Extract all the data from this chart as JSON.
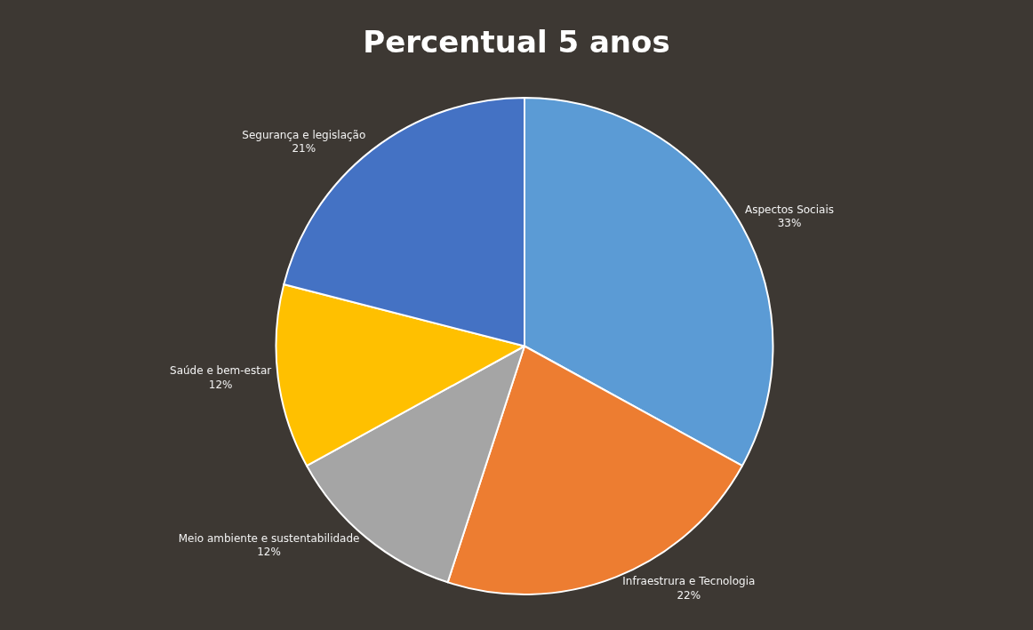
{
  "chart_data": {
    "type": "pie",
    "title": "Percentual 5 anos",
    "categories": [
      "Aspectos Sociais",
      "Infraestrura e Tecnologia",
      "Meio ambiente e sustentabilidade",
      "Saúde e bem-estar",
      "Segurança e legislação"
    ],
    "values": [
      33,
      22,
      12,
      12,
      21
    ],
    "value_labels": [
      "33%",
      "22%",
      "12%",
      "12%",
      "21%"
    ],
    "colors": [
      "#5b9bd5",
      "#ed7d31",
      "#a5a5a5",
      "#ffc000",
      "#4472c4"
    ],
    "legend": false
  }
}
